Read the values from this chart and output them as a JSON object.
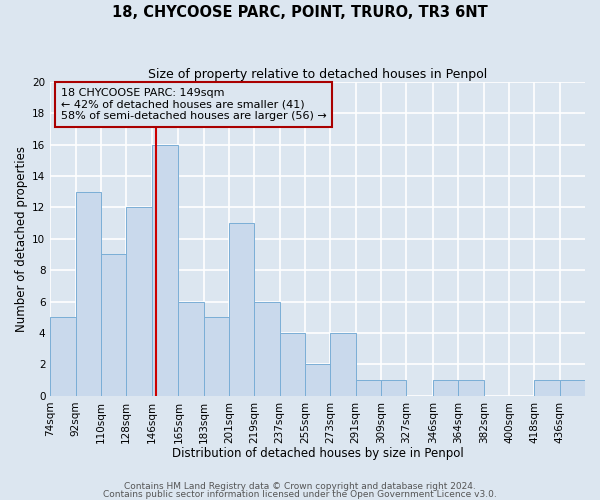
{
  "title": "18, CHYCOOSE PARC, POINT, TRURO, TR3 6NT",
  "subtitle": "Size of property relative to detached houses in Penpol",
  "xlabel": "Distribution of detached houses by size in Penpol",
  "ylabel": "Number of detached properties",
  "bin_labels": [
    "74sqm",
    "92sqm",
    "110sqm",
    "128sqm",
    "146sqm",
    "165sqm",
    "183sqm",
    "201sqm",
    "219sqm",
    "237sqm",
    "255sqm",
    "273sqm",
    "291sqm",
    "309sqm",
    "327sqm",
    "346sqm",
    "364sqm",
    "382sqm",
    "400sqm",
    "418sqm",
    "436sqm"
  ],
  "bin_edges": [
    74,
    92,
    110,
    128,
    146,
    165,
    183,
    201,
    219,
    237,
    255,
    273,
    291,
    309,
    327,
    346,
    364,
    382,
    400,
    418,
    436,
    454
  ],
  "counts": [
    5,
    13,
    9,
    12,
    16,
    6,
    5,
    11,
    6,
    4,
    2,
    4,
    1,
    1,
    0,
    1,
    1,
    0,
    0,
    1,
    1
  ],
  "bar_facecolor": "#c9d9ec",
  "bar_edgecolor": "#7aaed6",
  "property_line_x": 149,
  "vline_color": "#cc0000",
  "annotation_title": "18 CHYCOOSE PARC: 149sqm",
  "annotation_line1": "← 42% of detached houses are smaller (41)",
  "annotation_line2": "58% of semi-detached houses are larger (56) →",
  "annotation_box_edgecolor": "#aa0000",
  "ylim": [
    0,
    20
  ],
  "yticks": [
    0,
    2,
    4,
    6,
    8,
    10,
    12,
    14,
    16,
    18,
    20
  ],
  "footer1": "Contains HM Land Registry data © Crown copyright and database right 2024.",
  "footer2": "Contains public sector information licensed under the Open Government Licence v3.0.",
  "background_color": "#dce6f0",
  "plot_bg_color": "#dce6f0",
  "grid_color": "#ffffff",
  "title_fontsize": 10.5,
  "subtitle_fontsize": 9,
  "axis_label_fontsize": 8.5,
  "tick_fontsize": 7.5,
  "annotation_fontsize": 8,
  "footer_fontsize": 6.5
}
